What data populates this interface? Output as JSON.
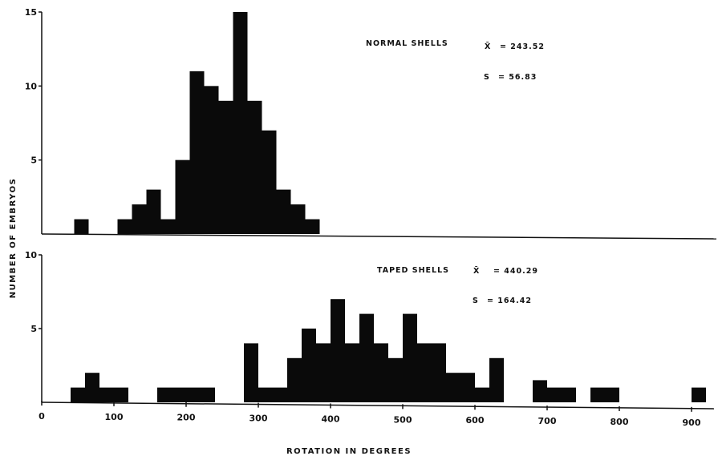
{
  "chart_data": [
    {
      "type": "bar",
      "panel": "top",
      "xlabel": "ROTATION IN DEGREES",
      "ylabel": "NUMBER OF EMBRYOS",
      "ylim": [
        0,
        15
      ],
      "yticks": [
        "5",
        "10",
        "15"
      ],
      "yticks_values": [
        5,
        10,
        15
      ],
      "annotation": {
        "label": "NORMAL SHELLS",
        "mean_symbol": "X̄",
        "mean": "= 243.52",
        "sd_symbol": "S",
        "sd": "= 56.83"
      },
      "bars": [
        {
          "x": 45,
          "x2": 65,
          "y": 1
        },
        {
          "x": 105,
          "x2": 125,
          "y": 1
        },
        {
          "x": 125,
          "x2": 145,
          "y": 2
        },
        {
          "x": 145,
          "x2": 165,
          "y": 3
        },
        {
          "x": 165,
          "x2": 185,
          "y": 1
        },
        {
          "x": 185,
          "x2": 205,
          "y": 5
        },
        {
          "x": 205,
          "x2": 225,
          "y": 11
        },
        {
          "x": 225,
          "x2": 245,
          "y": 10
        },
        {
          "x": 245,
          "x2": 265,
          "y": 9
        },
        {
          "x": 265,
          "x2": 285,
          "y": 15
        },
        {
          "x": 285,
          "x2": 305,
          "y": 9
        },
        {
          "x": 305,
          "x2": 325,
          "y": 7
        },
        {
          "x": 325,
          "x2": 345,
          "y": 3
        },
        {
          "x": 345,
          "x2": 365,
          "y": 2
        },
        {
          "x": 365,
          "x2": 385,
          "y": 1
        }
      ]
    },
    {
      "type": "bar",
      "panel": "bottom",
      "xlabel": "ROTATION IN DEGREES",
      "ylabel": "NUMBER OF EMBRYOS",
      "xlim": [
        0,
        920
      ],
      "ylim": [
        0,
        10
      ],
      "xticks": [
        "0",
        "100",
        "200",
        "300",
        "400",
        "500",
        "600",
        "700",
        "800",
        "900"
      ],
      "xticks_values": [
        0,
        100,
        200,
        300,
        400,
        500,
        600,
        700,
        800,
        900
      ],
      "yticks": [
        "5",
        "10"
      ],
      "yticks_values": [
        5,
        10
      ],
      "annotation": {
        "label": "TAPED SHELLS",
        "mean_symbol": "X̄",
        "mean": "= 440.29",
        "sd_symbol": "S",
        "sd": "= 164.42"
      },
      "bars": [
        {
          "x": 40,
          "x2": 60,
          "y": 1
        },
        {
          "x": 60,
          "x2": 80,
          "y": 2
        },
        {
          "x": 80,
          "x2": 120,
          "y": 1
        },
        {
          "x": 160,
          "x2": 240,
          "y": 1
        },
        {
          "x": 280,
          "x2": 300,
          "y": 4
        },
        {
          "x": 300,
          "x2": 340,
          "y": 1
        },
        {
          "x": 340,
          "x2": 360,
          "y": 3
        },
        {
          "x": 360,
          "x2": 380,
          "y": 5
        },
        {
          "x": 380,
          "x2": 400,
          "y": 4
        },
        {
          "x": 400,
          "x2": 420,
          "y": 7
        },
        {
          "x": 420,
          "x2": 440,
          "y": 4
        },
        {
          "x": 440,
          "x2": 460,
          "y": 6
        },
        {
          "x": 460,
          "x2": 480,
          "y": 4
        },
        {
          "x": 480,
          "x2": 500,
          "y": 3
        },
        {
          "x": 500,
          "x2": 520,
          "y": 6
        },
        {
          "x": 520,
          "x2": 560,
          "y": 4
        },
        {
          "x": 560,
          "x2": 600,
          "y": 2
        },
        {
          "x": 600,
          "x2": 620,
          "y": 1
        },
        {
          "x": 620,
          "x2": 640,
          "y": 3
        },
        {
          "x": 680,
          "x2": 700,
          "y": 1.5
        },
        {
          "x": 700,
          "x2": 740,
          "y": 1
        },
        {
          "x": 760,
          "x2": 800,
          "y": 1
        },
        {
          "x": 900,
          "x2": 920,
          "y": 1
        }
      ]
    }
  ]
}
